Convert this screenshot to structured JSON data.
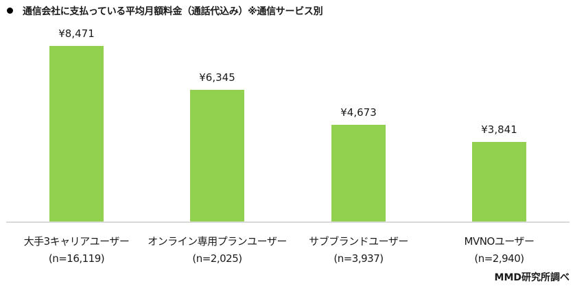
{
  "title": "通信会社に支払っている平均月額料金（通話代込み）※通信サービス別",
  "source": "MMD研究所調べ",
  "colors": {
    "bar": "#92d050",
    "axis": "#d9d9d9"
  },
  "chart_data": {
    "type": "bar",
    "title": "通信会社に支払っている平均月額料金（通話代込み）※通信サービス別",
    "categories": [
      "大手3キャリアユーザー",
      "オンライン専用プランユーザー",
      "サブブランドユーザー",
      "MVNOユーザー"
    ],
    "sample_sizes": [
      "(n=16,119)",
      "(n=2,025)",
      "(n=3,937)",
      "(n=2,940)"
    ],
    "values": [
      8471,
      6345,
      4673,
      3841
    ],
    "value_labels": [
      "¥8,471",
      "¥6,345",
      "¥4,673",
      "¥3,841"
    ],
    "xlabel": "",
    "ylabel": "",
    "ylim": [
      0,
      10000
    ],
    "grid": false,
    "legend": "none"
  }
}
